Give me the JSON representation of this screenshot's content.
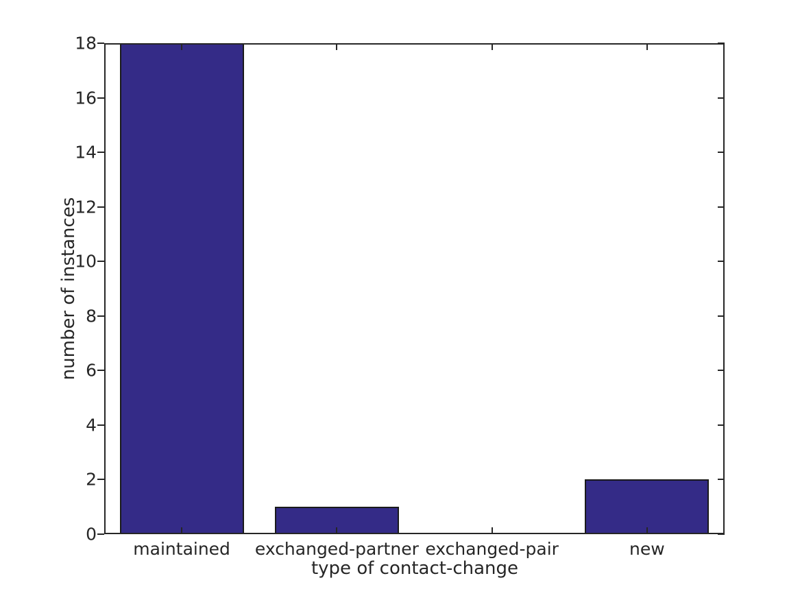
{
  "chart_data": {
    "type": "bar",
    "title": "",
    "categories": [
      "maintained",
      "exchanged-partner",
      "exchanged-pair",
      "new"
    ],
    "values": [
      18,
      1,
      0,
      2
    ],
    "xlabel": "type of contact-change",
    "ylabel": "number of instances",
    "ylim": [
      0,
      18
    ],
    "yticks": [
      0,
      2,
      4,
      6,
      8,
      10,
      12,
      14,
      16,
      18
    ],
    "bar_width_fraction": 0.8,
    "grid": false,
    "legend": null,
    "colors": {
      "bar_fill": "#342b87",
      "bar_edge": "#1a1a1a",
      "axis": "#262626",
      "text": "#262626",
      "background": "#ffffff"
    }
  }
}
